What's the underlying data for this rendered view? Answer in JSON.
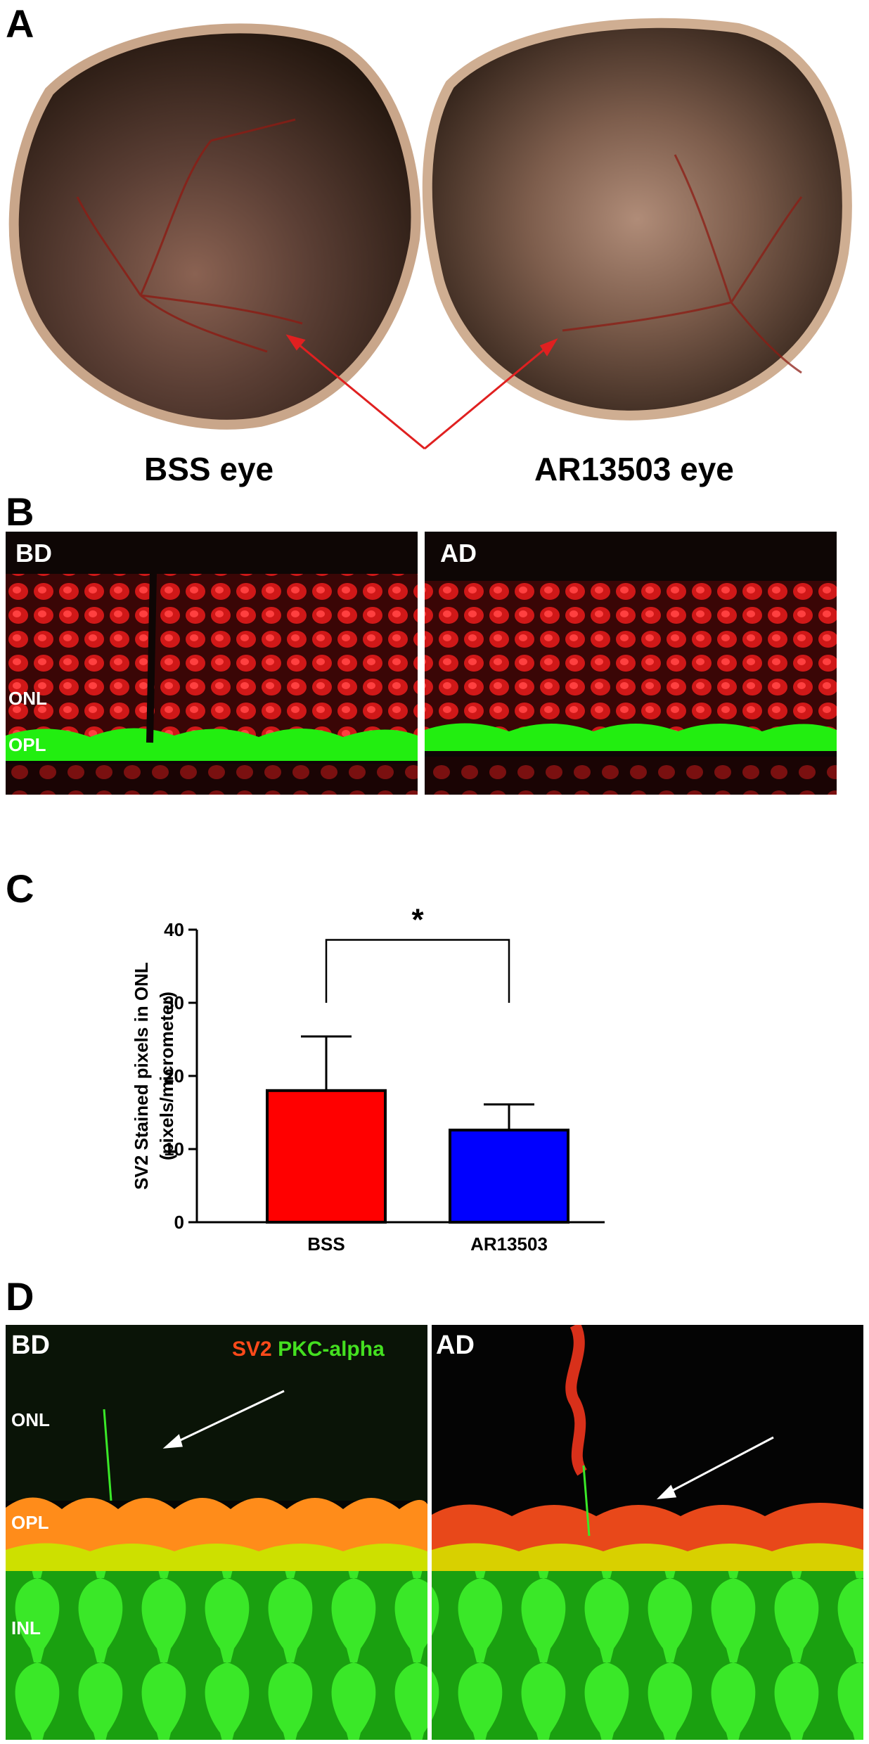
{
  "panels": {
    "a": {
      "letter": "A",
      "left_caption": "BSS eye",
      "right_caption": "AR13503 eye"
    },
    "b": {
      "letter": "B",
      "left_tag": "BD",
      "right_tag": "AD",
      "layer_onl": "ONL",
      "layer_opl": "OPL"
    },
    "c": {
      "letter": "C"
    },
    "d": {
      "letter": "D",
      "left_tag": "BD",
      "right_tag": "AD",
      "legend_sv2": "SV2",
      "legend_pkc": "PKC-alpha",
      "layer_onl": "ONL",
      "layer_opl": "OPL",
      "layer_inl": "INL"
    }
  },
  "colors": {
    "bss_bar": "#ff0000",
    "ar_bar": "#0000ff",
    "stain_red": "#e01818",
    "stain_green": "#22ee10",
    "sv2_text": "#ff4a1a",
    "pkc_text": "#44e020",
    "arrow_red": "#e02020"
  },
  "chart_data": {
    "type": "bar",
    "categories": [
      "BSS",
      "AR13503"
    ],
    "values": [
      18,
      12.6
    ],
    "errors": [
      7.4,
      3.5
    ],
    "ylabel_line1": "SV2 Stained pixels in ONL",
    "ylabel_line2": "(pixels/micrometer)",
    "ylim": [
      0,
      40
    ],
    "yticks": [
      "0",
      "10",
      "20",
      "30",
      "40"
    ],
    "significance": "*"
  }
}
